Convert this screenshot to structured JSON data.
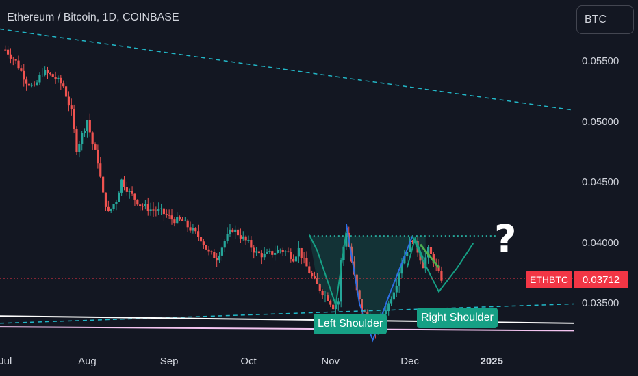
{
  "header": {
    "title": "Ethereum / Bitcoin, 1D, COINBASE",
    "currency_button": "BTC"
  },
  "chart_data": {
    "type": "candlestick",
    "symbol": "ETHBTC",
    "last_price": "0.03712",
    "last_price_value": 0.03712,
    "y_ticks": [
      "0.05500",
      "0.05000",
      "0.04500",
      "0.04000",
      "0.03500"
    ],
    "y_tick_values": [
      0.055,
      0.05,
      0.045,
      0.04,
      0.035
    ],
    "ylim": [
      0.0313,
      0.0601
    ],
    "x_ticks": [
      "Jul",
      "Aug",
      "Sep",
      "Oct",
      "Nov",
      "Dec",
      "2025"
    ],
    "x_tick_days": [
      0,
      31,
      62,
      92,
      123,
      153,
      184
    ],
    "x_range_days": [
      -2,
      215
    ],
    "grid": false,
    "pattern": {
      "left_shoulder_label": "Left Shoulder",
      "right_shoulder_label": "Right Shoulder",
      "neckline_price": 0.0406,
      "question_mark": "?"
    },
    "price_path": [
      [
        0,
        0.056
      ],
      [
        4,
        0.055
      ],
      [
        8,
        0.0534
      ],
      [
        11,
        0.0528
      ],
      [
        14,
        0.0542
      ],
      [
        18,
        0.0538
      ],
      [
        22,
        0.053
      ],
      [
        25,
        0.0508
      ],
      [
        27,
        0.0478
      ],
      [
        29,
        0.049
      ],
      [
        31,
        0.0502
      ],
      [
        33,
        0.0482
      ],
      [
        35,
        0.0468
      ],
      [
        37,
        0.044
      ],
      [
        39,
        0.0425
      ],
      [
        42,
        0.0436
      ],
      [
        44,
        0.0452
      ],
      [
        47,
        0.0442
      ],
      [
        51,
        0.0432
      ],
      [
        55,
        0.0428
      ],
      [
        59,
        0.0426
      ],
      [
        63,
        0.042
      ],
      [
        67,
        0.0418
      ],
      [
        71,
        0.041
      ],
      [
        74,
        0.0404
      ],
      [
        77,
        0.0392
      ],
      [
        80,
        0.0388
      ],
      [
        83,
        0.0402
      ],
      [
        86,
        0.0412
      ],
      [
        89,
        0.0406
      ],
      [
        92,
        0.04
      ],
      [
        95,
        0.0392
      ],
      [
        98,
        0.039
      ],
      [
        101,
        0.0392
      ],
      [
        104,
        0.0395
      ],
      [
        107,
        0.0392
      ],
      [
        109,
        0.0388
      ],
      [
        111,
        0.0395
      ],
      [
        113,
        0.0385
      ],
      [
        116,
        0.0372
      ],
      [
        119,
        0.0362
      ],
      [
        122,
        0.0355
      ],
      [
        124,
        0.0348
      ],
      [
        126,
        0.0352
      ],
      [
        127,
        0.0385
      ],
      [
        129,
        0.041
      ],
      [
        131,
        0.0385
      ],
      [
        133,
        0.036
      ],
      [
        135,
        0.0345
      ],
      [
        137,
        0.0338
      ],
      [
        139,
        0.033
      ],
      [
        140,
        0.0324
      ],
      [
        141,
        0.0332
      ],
      [
        143,
        0.0342
      ],
      [
        145,
        0.035
      ],
      [
        148,
        0.0368
      ],
      [
        150,
        0.0385
      ],
      [
        152,
        0.0395
      ],
      [
        154,
        0.0404
      ],
      [
        156,
        0.0394
      ],
      [
        158,
        0.0382
      ],
      [
        160,
        0.0394
      ],
      [
        162,
        0.0386
      ],
      [
        164,
        0.0374
      ],
      [
        165,
        0.0371
      ]
    ]
  }
}
